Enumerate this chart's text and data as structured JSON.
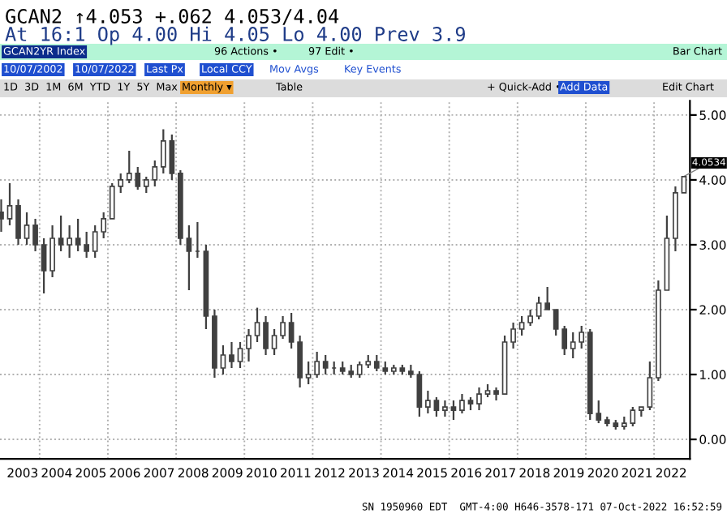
{
  "chart_data": {
    "type": "candlestick",
    "title": "GCAN2 ↑4.053 +.062 4.053/4.04",
    "subtitle": "At 16:1 Op 4.00 Hi 4.05 Lo 4.00 Prev 3.9",
    "x": [
      2002.875,
      2003.125,
      2003.375,
      2003.625,
      2003.875,
      2004.125,
      2004.375,
      2004.625,
      2004.875,
      2005.125,
      2005.375,
      2005.625,
      2005.875,
      2006.125,
      2006.375,
      2006.625,
      2006.875,
      2007.125,
      2007.375,
      2007.625,
      2007.875,
      2008.125,
      2008.375,
      2008.625,
      2008.875,
      2009.125,
      2009.375,
      2009.625,
      2009.875,
      2010.125,
      2010.375,
      2010.625,
      2010.875,
      2011.125,
      2011.375,
      2011.625,
      2011.875,
      2012.125,
      2012.375,
      2012.625,
      2012.875,
      2013.125,
      2013.375,
      2013.625,
      2013.875,
      2014.125,
      2014.375,
      2014.625,
      2014.875,
      2015.125,
      2015.375,
      2015.625,
      2015.875,
      2016.125,
      2016.375,
      2016.625,
      2016.875,
      2017.125,
      2017.375,
      2017.625,
      2017.875,
      2018.125,
      2018.375,
      2018.625,
      2018.875,
      2019.125,
      2019.375,
      2019.625,
      2019.875,
      2020.125,
      2020.375,
      2020.625,
      2020.875,
      2021.125,
      2021.375,
      2021.625,
      2021.875,
      2022.125,
      2022.375,
      2022.625,
      2022.875
    ],
    "ohlc": [
      [
        3.5,
        3.7,
        3.2,
        3.4
      ],
      [
        3.4,
        3.95,
        3.3,
        3.6
      ],
      [
        3.6,
        3.7,
        3.0,
        3.1
      ],
      [
        3.1,
        3.5,
        3.0,
        3.3
      ],
      [
        3.3,
        3.4,
        2.9,
        3.0
      ],
      [
        3.0,
        3.1,
        2.25,
        2.6
      ],
      [
        2.6,
        3.3,
        2.5,
        3.1
      ],
      [
        3.1,
        3.45,
        2.9,
        3.0
      ],
      [
        3.0,
        3.3,
        2.8,
        3.1
      ],
      [
        3.1,
        3.4,
        2.9,
        3.0
      ],
      [
        3.0,
        3.2,
        2.8,
        2.9
      ],
      [
        2.9,
        3.3,
        2.8,
        3.2
      ],
      [
        3.2,
        3.5,
        3.1,
        3.4
      ],
      [
        3.4,
        3.95,
        3.4,
        3.9
      ],
      [
        3.9,
        4.1,
        3.8,
        4.0
      ],
      [
        4.0,
        4.45,
        3.95,
        4.1
      ],
      [
        4.1,
        4.2,
        3.85,
        3.9
      ],
      [
        3.9,
        4.05,
        3.8,
        4.0
      ],
      [
        4.0,
        4.3,
        3.9,
        4.2
      ],
      [
        4.2,
        4.78,
        4.1,
        4.6
      ],
      [
        4.6,
        4.7,
        4.0,
        4.1
      ],
      [
        4.1,
        4.15,
        3.0,
        3.1
      ],
      [
        3.1,
        3.3,
        2.3,
        2.9
      ],
      [
        2.9,
        3.35,
        2.8,
        2.9
      ],
      [
        2.9,
        3.0,
        1.7,
        1.9
      ],
      [
        1.9,
        2.0,
        0.95,
        1.1
      ],
      [
        1.1,
        1.45,
        1.0,
        1.3
      ],
      [
        1.3,
        1.5,
        1.1,
        1.2
      ],
      [
        1.2,
        1.5,
        1.1,
        1.4
      ],
      [
        1.4,
        1.7,
        1.2,
        1.6
      ],
      [
        1.6,
        2.03,
        1.5,
        1.8
      ],
      [
        1.8,
        1.9,
        1.3,
        1.4
      ],
      [
        1.4,
        1.7,
        1.3,
        1.6
      ],
      [
        1.6,
        1.9,
        1.55,
        1.8
      ],
      [
        1.8,
        1.95,
        1.4,
        1.5
      ],
      [
        1.5,
        1.6,
        0.8,
        0.95
      ],
      [
        0.95,
        1.2,
        0.85,
        1.0
      ],
      [
        1.0,
        1.35,
        0.95,
        1.2
      ],
      [
        1.2,
        1.3,
        1.0,
        1.1
      ],
      [
        1.1,
        1.2,
        1.0,
        1.1
      ],
      [
        1.1,
        1.2,
        1.0,
        1.05
      ],
      [
        1.05,
        1.15,
        0.95,
        1.0
      ],
      [
        1.0,
        1.2,
        0.95,
        1.15
      ],
      [
        1.15,
        1.3,
        1.1,
        1.2
      ],
      [
        1.2,
        1.3,
        1.05,
        1.1
      ],
      [
        1.1,
        1.2,
        1.0,
        1.05
      ],
      [
        1.05,
        1.15,
        1.0,
        1.1
      ],
      [
        1.1,
        1.15,
        1.0,
        1.05
      ],
      [
        1.05,
        1.15,
        0.95,
        1.0
      ],
      [
        1.0,
        1.05,
        0.35,
        0.5
      ],
      [
        0.5,
        0.75,
        0.4,
        0.6
      ],
      [
        0.6,
        0.65,
        0.35,
        0.45
      ],
      [
        0.45,
        0.6,
        0.35,
        0.5
      ],
      [
        0.5,
        0.6,
        0.3,
        0.45
      ],
      [
        0.45,
        0.7,
        0.4,
        0.6
      ],
      [
        0.6,
        0.65,
        0.45,
        0.55
      ],
      [
        0.55,
        0.8,
        0.45,
        0.7
      ],
      [
        0.7,
        0.85,
        0.65,
        0.75
      ],
      [
        0.75,
        0.8,
        0.6,
        0.7
      ],
      [
        0.7,
        1.6,
        0.7,
        1.5
      ],
      [
        1.5,
        1.8,
        1.4,
        1.7
      ],
      [
        1.7,
        1.9,
        1.6,
        1.8
      ],
      [
        1.8,
        2.0,
        1.75,
        1.9
      ],
      [
        1.9,
        2.2,
        1.85,
        2.1
      ],
      [
        2.1,
        2.35,
        2.0,
        2.0
      ],
      [
        2.0,
        2.0,
        1.6,
        1.7
      ],
      [
        1.7,
        1.75,
        1.3,
        1.4
      ],
      [
        1.4,
        1.65,
        1.25,
        1.5
      ],
      [
        1.5,
        1.75,
        1.4,
        1.65
      ],
      [
        1.65,
        1.7,
        0.3,
        0.4
      ],
      [
        0.4,
        0.6,
        0.25,
        0.3
      ],
      [
        0.3,
        0.35,
        0.2,
        0.25
      ],
      [
        0.25,
        0.3,
        0.15,
        0.2
      ],
      [
        0.2,
        0.35,
        0.15,
        0.25
      ],
      [
        0.25,
        0.5,
        0.2,
        0.45
      ],
      [
        0.45,
        0.5,
        0.35,
        0.5
      ],
      [
        0.5,
        1.2,
        0.45,
        0.95
      ],
      [
        0.95,
        2.45,
        0.9,
        2.3
      ],
      [
        2.3,
        3.45,
        2.3,
        3.1
      ],
      [
        3.1,
        3.9,
        2.9,
        3.8
      ],
      [
        3.8,
        4.05,
        3.8,
        4.05
      ]
    ],
    "color": "#404040",
    "xlim": [
      2002.84,
      2023.05
    ],
    "ylim": [
      -0.3,
      5.22
    ],
    "xticks": [
      {
        "value": 2003.5,
        "label": "2003"
      },
      {
        "value": 2004.5,
        "label": "2004"
      },
      {
        "value": 2005.5,
        "label": "2005"
      },
      {
        "value": 2006.5,
        "label": "2006"
      },
      {
        "value": 2007.5,
        "label": "2007"
      },
      {
        "value": 2008.5,
        "label": "2008"
      },
      {
        "value": 2009.5,
        "label": "2009"
      },
      {
        "value": 2010.5,
        "label": "2010"
      },
      {
        "value": 2011.5,
        "label": "2011"
      },
      {
        "value": 2012.5,
        "label": "2012"
      },
      {
        "value": 2013.5,
        "label": "2013"
      },
      {
        "value": 2014.5,
        "label": "2014"
      },
      {
        "value": 2015.5,
        "label": "2015"
      },
      {
        "value": 2016.5,
        "label": "2016"
      },
      {
        "value": 2017.5,
        "label": "2017"
      },
      {
        "value": 2018.5,
        "label": "2018"
      },
      {
        "value": 2019.5,
        "label": "2019"
      },
      {
        "value": 2020.5,
        "label": "2020"
      },
      {
        "value": 2021.5,
        "label": "2021"
      },
      {
        "value": 2022.5,
        "label": "2022"
      },
      {
        "value": 2004,
        "label": null
      },
      {
        "value": 2006,
        "label": null
      },
      {
        "value": 2008,
        "label": null
      },
      {
        "value": 2010,
        "label": null
      },
      {
        "value": 2012,
        "label": null
      },
      {
        "value": 2014,
        "label": null
      },
      {
        "value": 2016,
        "label": null
      },
      {
        "value": 2018,
        "label": null
      },
      {
        "value": 2020,
        "label": null
      },
      {
        "value": 2022,
        "label": null
      }
    ],
    "yticks": [
      {
        "value": 0,
        "label": "0.00"
      },
      {
        "value": 1,
        "label": "1.00"
      },
      {
        "value": 2,
        "label": "2.00"
      },
      {
        "value": 3,
        "label": "3.00"
      },
      {
        "value": 4,
        "label": "4.00"
      },
      {
        "value": 5,
        "label": "5.00"
      }
    ],
    "grid": true,
    "annotations": [
      "GCAN2YR Index",
      "96 Actions •",
      "97 Edit •",
      "Bar Chart",
      "10/07/2002",
      "10/07/2022",
      "Last Px",
      "Local CCY",
      "Mov Avgs",
      "Key Events",
      "1D  3D  1M  6M  YTD  1Y  5Y  Max",
      "Monthly ▾",
      "Table",
      "+ Quick-Add •",
      "Add Data",
      "Edit Chart",
      {
        "text": "4.0534",
        "x": 2022.875,
        "y": 4.0534
      },
      "SN 1950960 EDT  GMT-4:00 H646-3578-171 07-Oct-2022 16:52:59"
    ]
  }
}
